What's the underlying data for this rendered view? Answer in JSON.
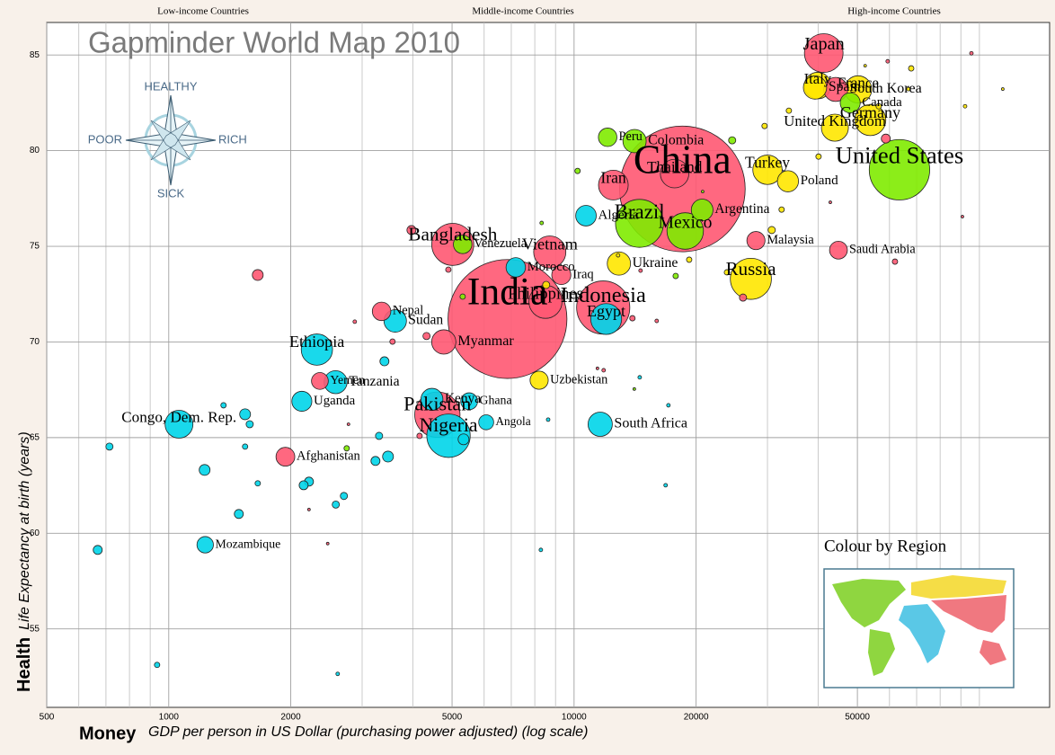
{
  "chart_data": {
    "type": "bubble",
    "title": "Gapminder World Map 2010",
    "xlabel_bold": "Money",
    "xlabel": "GDP per person in US Dollar (purchasing power adjusted) (log scale)",
    "ylabel_bold": "Health",
    "ylabel": "Life Expectancy at birth (years)",
    "income_labels": [
      "Low-income Countries",
      "Middle-income Countries",
      "High-income Countries"
    ],
    "compass": {
      "up": "HEALTHY",
      "down": "SICK",
      "left": "POOR",
      "right": "RICH"
    },
    "legend_title": "Colour by Region",
    "xscale": "log",
    "xlim": [
      500,
      149000
    ],
    "ylim": [
      50.9,
      86.7
    ],
    "xticks": [
      500,
      1000,
      2000,
      5000,
      10000,
      20000,
      50000
    ],
    "xminor": [
      600,
      700,
      800,
      900,
      3000,
      4000,
      6000,
      7000,
      8000,
      9000,
      30000,
      40000,
      60000,
      70000,
      80000,
      90000,
      100000
    ],
    "yticks": [
      55,
      60,
      65,
      70,
      75,
      80,
      85
    ],
    "grid": true,
    "points": [
      {
        "label": "China",
        "x": 18500,
        "y": 78.0,
        "size": 1340,
        "color": "#ff5872"
      },
      {
        "label": "India",
        "x": 6850,
        "y": 71.2,
        "size": 1200,
        "color": "#ff5872"
      },
      {
        "label": "United States",
        "x": 63500,
        "y": 79.0,
        "size": 310,
        "color": "#7feb00"
      },
      {
        "label": "Indonesia",
        "x": 11800,
        "y": 71.8,
        "size": 240,
        "color": "#ff5872"
      },
      {
        "label": "Brazil",
        "x": 14500,
        "y": 76.2,
        "size": 195,
        "color": "#7feb00"
      },
      {
        "label": "Pakistan",
        "x": 4600,
        "y": 66.2,
        "size": 174,
        "color": "#ff5872"
      },
      {
        "label": "Nigeria",
        "x": 4900,
        "y": 65.1,
        "size": 160,
        "color": "#00d5e9"
      },
      {
        "label": "Bangladesh",
        "x": 5020,
        "y": 75.1,
        "size": 150,
        "color": "#ff5872"
      },
      {
        "label": "Russia",
        "x": 27300,
        "y": 73.3,
        "size": 143,
        "color": "#ffe700"
      },
      {
        "label": "Japan",
        "x": 41300,
        "y": 85.1,
        "size": 127,
        "color": "#ff5872"
      },
      {
        "label": "Mexico",
        "x": 18800,
        "y": 75.8,
        "size": 113,
        "color": "#7feb00"
      },
      {
        "label": "Philippines",
        "x": 8500,
        "y": 72.1,
        "size": 93,
        "color": "#ff5872"
      },
      {
        "label": "Vietnam",
        "x": 8710,
        "y": 74.7,
        "size": 88,
        "color": "#ff5872"
      },
      {
        "label": "Ethiopia",
        "x": 2320,
        "y": 69.6,
        "size": 83,
        "color": "#00d5e9"
      },
      {
        "label": "Germany",
        "x": 53800,
        "y": 81.6,
        "size": 82,
        "color": "#ffe700"
      },
      {
        "label": "Egypt",
        "x": 12000,
        "y": 71.2,
        "size": 81,
        "color": "#00d5e9"
      },
      {
        "label": "Iran",
        "x": 12500,
        "y": 78.2,
        "size": 75,
        "color": "#ff5872"
      },
      {
        "label": "Turkey",
        "x": 30000,
        "y": 79.0,
        "size": 73,
        "color": "#ffe700"
      },
      {
        "label": "Thailand",
        "x": 17700,
        "y": 78.8,
        "size": 69,
        "color": "#ff5872"
      },
      {
        "label": "Congo, Dem. Rep.",
        "x": 1060,
        "y": 65.7,
        "size": 66,
        "color": "#00d5e9"
      },
      {
        "label": "France",
        "x": 50200,
        "y": 83.2,
        "size": 63,
        "color": "#ffe700"
      },
      {
        "label": "United Kingdom",
        "x": 44000,
        "y": 81.2,
        "size": 62,
        "color": "#ffe700"
      },
      {
        "label": "Italy",
        "x": 39900,
        "y": 83.4,
        "size": 60,
        "color": "#ffe700"
      },
      {
        "label": "Myanmar",
        "x": 4770,
        "y": 70.0,
        "size": 50,
        "color": "#ff5872"
      },
      {
        "label": "South Africa",
        "x": 11600,
        "y": 65.7,
        "size": 50,
        "color": "#00d5e9"
      },
      {
        "label": "South Korea",
        "x": 44200,
        "y": 83.2,
        "size": 49,
        "color": "#ff5872"
      },
      {
        "label": "Spain",
        "x": 39300,
        "y": 83.3,
        "size": 46,
        "color": "#ffe700"
      },
      {
        "label": "Colombia",
        "x": 14100,
        "y": 80.5,
        "size": 46,
        "color": "#7feb00"
      },
      {
        "label": "Ukraine",
        "x": 12900,
        "y": 74.1,
        "size": 46,
        "color": "#ffe700"
      },
      {
        "label": "Tanzania",
        "x": 2580,
        "y": 67.9,
        "size": 45,
        "color": "#00d5e9"
      },
      {
        "label": "Sudan",
        "x": 3620,
        "y": 71.1,
        "size": 43,
        "color": "#00d5e9"
      },
      {
        "label": "Kenya",
        "x": 4460,
        "y": 67.0,
        "size": 41,
        "color": "#00d5e9"
      },
      {
        "label": "Argentina",
        "x": 20700,
        "y": 76.9,
        "size": 40,
        "color": "#7feb00"
      },
      {
        "label": "Poland",
        "x": 33700,
        "y": 78.4,
        "size": 38,
        "color": "#ffe700"
      },
      {
        "label": "Algeria",
        "x": 10700,
        "y": 76.6,
        "size": 36,
        "color": "#00d5e9"
      },
      {
        "label": "Uganda",
        "x": 2130,
        "y": 66.9,
        "size": 34,
        "color": "#00d5e9"
      },
      {
        "label": "Canada",
        "x": 48000,
        "y": 82.5,
        "size": 34,
        "color": "#7feb00"
      },
      {
        "label": "Morocco",
        "x": 7180,
        "y": 73.9,
        "size": 32,
        "color": "#00d5e9"
      },
      {
        "label": "Iraq",
        "x": 9300,
        "y": 73.5,
        "size": 31,
        "color": "#ff5872"
      },
      {
        "label": "Afghanistan",
        "x": 1940,
        "y": 64.0,
        "size": 30,
        "color": "#ff5872"
      },
      {
        "label": "Peru",
        "x": 12100,
        "y": 80.7,
        "size": 29,
        "color": "#7feb00"
      },
      {
        "label": "Venezuela",
        "x": 5310,
        "y": 75.1,
        "size": 29,
        "color": "#7feb00"
      },
      {
        "label": "Nepal",
        "x": 3350,
        "y": 71.6,
        "size": 29,
        "color": "#ff5872"
      },
      {
        "label": "Malaysia",
        "x": 28100,
        "y": 75.3,
        "size": 28,
        "color": "#ff5872"
      },
      {
        "label": "Uzbekistan",
        "x": 8200,
        "y": 68.0,
        "size": 28,
        "color": "#ffe700"
      },
      {
        "label": "Saudi Arabia",
        "x": 44900,
        "y": 74.8,
        "size": 27,
        "color": "#ff5872"
      },
      {
        "label": "Yemen",
        "x": 2360,
        "y": 67.96,
        "size": 24,
        "color": "#ff5872"
      },
      {
        "label": "Ghana",
        "x": 5510,
        "y": 66.9,
        "size": 24,
        "color": "#00d5e9"
      },
      {
        "label": "Mozambique",
        "x": 1230,
        "y": 59.4,
        "size": 23,
        "color": "#00d5e9"
      },
      {
        "label": "Angola",
        "x": 6070,
        "y": 65.8,
        "size": 19,
        "color": "#00d5e9"
      },
      {
        "label": null,
        "x": 714,
        "y": 64.53,
        "size": 4.4,
        "color": "#00d5e9"
      },
      {
        "label": null,
        "x": 668,
        "y": 59.13,
        "size": 6.9,
        "color": "#00d5e9"
      },
      {
        "label": null,
        "x": 936,
        "y": 53.12,
        "size": 2.5,
        "color": "#00d5e9"
      },
      {
        "label": null,
        "x": 1226,
        "y": 63.31,
        "size": 10,
        "color": "#00d5e9"
      },
      {
        "label": null,
        "x": 1365,
        "y": 66.69,
        "size": 2.5,
        "color": "#00d5e9"
      },
      {
        "label": null,
        "x": 1543,
        "y": 66.22,
        "size": 10,
        "color": "#00d5e9"
      },
      {
        "label": null,
        "x": 1584,
        "y": 65.7,
        "size": 4.4,
        "color": "#00d5e9"
      },
      {
        "label": null,
        "x": 1543,
        "y": 64.53,
        "size": 2.5,
        "color": "#00d5e9"
      },
      {
        "label": null,
        "x": 1658,
        "y": 62.61,
        "size": 2.5,
        "color": "#00d5e9"
      },
      {
        "label": null,
        "x": 1489,
        "y": 61.01,
        "size": 6.9,
        "color": "#00d5e9"
      },
      {
        "label": null,
        "x": 2611,
        "y": 52.65,
        "size": 1.1,
        "color": "#00d5e9"
      },
      {
        "label": null,
        "x": 2218,
        "y": 62.7,
        "size": 6.9,
        "color": "#00d5e9"
      },
      {
        "label": null,
        "x": 2152,
        "y": 62.51,
        "size": 6.9,
        "color": "#00d5e9"
      },
      {
        "label": null,
        "x": 2583,
        "y": 61.5,
        "size": 4.4,
        "color": "#00d5e9"
      },
      {
        "label": null,
        "x": 2705,
        "y": 61.95,
        "size": 4.4,
        "color": "#00d5e9"
      },
      {
        "label": null,
        "x": 3236,
        "y": 63.78,
        "size": 6.9,
        "color": "#00d5e9"
      },
      {
        "label": null,
        "x": 3475,
        "y": 64.01,
        "size": 10,
        "color": "#00d5e9"
      },
      {
        "label": null,
        "x": 3405,
        "y": 68.99,
        "size": 6.9,
        "color": "#00d5e9"
      },
      {
        "label": null,
        "x": 3303,
        "y": 65.09,
        "size": 4.4,
        "color": "#00d5e9"
      },
      {
        "label": null,
        "x": 5337,
        "y": 64.91,
        "size": 10,
        "color": "#00d5e9"
      },
      {
        "label": null,
        "x": 8630,
        "y": 65.94,
        "size": 1.1,
        "color": "#00d5e9"
      },
      {
        "label": null,
        "x": 14520,
        "y": 68.15,
        "size": 1.1,
        "color": "#00d5e9"
      },
      {
        "label": null,
        "x": 17090,
        "y": 66.69,
        "size": 1.1,
        "color": "#00d5e9"
      },
      {
        "label": null,
        "x": 16820,
        "y": 62.51,
        "size": 1.1,
        "color": "#00d5e9"
      },
      {
        "label": null,
        "x": 8280,
        "y": 59.13,
        "size": 1.1,
        "color": "#00d5e9"
      },
      {
        "label": null,
        "x": 1658,
        "y": 73.5,
        "size": 10,
        "color": "#ff5872"
      },
      {
        "label": null,
        "x": 3970,
        "y": 75.85,
        "size": 6.9,
        "color": "#ff5872"
      },
      {
        "label": null,
        "x": 3565,
        "y": 70.02,
        "size": 2.5,
        "color": "#ff5872"
      },
      {
        "label": null,
        "x": 2877,
        "y": 71.06,
        "size": 1.1,
        "color": "#ff5872"
      },
      {
        "label": null,
        "x": 4325,
        "y": 70.31,
        "size": 4.4,
        "color": "#ff5872"
      },
      {
        "label": null,
        "x": 4896,
        "y": 73.78,
        "size": 2.5,
        "color": "#ff5872"
      },
      {
        "label": null,
        "x": 4157,
        "y": 65.09,
        "size": 2.5,
        "color": "#ff5872"
      },
      {
        "label": null,
        "x": 2776,
        "y": 65.7,
        "size": 0.5,
        "color": "#ff5872"
      },
      {
        "label": null,
        "x": 2467,
        "y": 59.46,
        "size": 0.5,
        "color": "#ff5872"
      },
      {
        "label": null,
        "x": 2218,
        "y": 61.24,
        "size": 0.3,
        "color": "#ff5872"
      },
      {
        "label": null,
        "x": 11420,
        "y": 68.62,
        "size": 0.5,
        "color": "#ff5872"
      },
      {
        "label": null,
        "x": 11830,
        "y": 68.52,
        "size": 1.1,
        "color": "#ff5872"
      },
      {
        "label": null,
        "x": 13930,
        "y": 71.24,
        "size": 2.5,
        "color": "#ff5872"
      },
      {
        "label": null,
        "x": 15990,
        "y": 71.1,
        "size": 1.1,
        "color": "#ff5872"
      },
      {
        "label": null,
        "x": 14590,
        "y": 73.73,
        "size": 1.1,
        "color": "#ff5872"
      },
      {
        "label": null,
        "x": 26110,
        "y": 72.32,
        "size": 4.4,
        "color": "#ff5872"
      },
      {
        "label": null,
        "x": 90790,
        "y": 76.55,
        "size": 0.5,
        "color": "#ff5872"
      },
      {
        "label": null,
        "x": 61900,
        "y": 74.2,
        "size": 2.5,
        "color": "#ff5872"
      },
      {
        "label": null,
        "x": 58760,
        "y": 80.63,
        "size": 6.9,
        "color": "#ff5872"
      },
      {
        "label": null,
        "x": 59390,
        "y": 84.67,
        "size": 1.1,
        "color": "#ff5872"
      },
      {
        "label": null,
        "x": 95560,
        "y": 85.09,
        "size": 1.1,
        "color": "#ff5872"
      },
      {
        "label": null,
        "x": 42870,
        "y": 77.3,
        "size": 0.5,
        "color": "#ff5872"
      },
      {
        "label": null,
        "x": 2748,
        "y": 64.44,
        "size": 2.5,
        "color": "#7feb00"
      },
      {
        "label": null,
        "x": 5311,
        "y": 72.37,
        "size": 2.5,
        "color": "#7feb00"
      },
      {
        "label": null,
        "x": 8318,
        "y": 76.22,
        "size": 1.1,
        "color": "#7feb00"
      },
      {
        "label": null,
        "x": 10200,
        "y": 78.94,
        "size": 2.5,
        "color": "#7feb00"
      },
      {
        "label": null,
        "x": 13930,
        "y": 76.55,
        "size": 1.1,
        "color": "#7feb00"
      },
      {
        "label": null,
        "x": 20760,
        "y": 77.86,
        "size": 0.5,
        "color": "#7feb00"
      },
      {
        "label": null,
        "x": 17810,
        "y": 73.45,
        "size": 2.5,
        "color": "#7feb00"
      },
      {
        "label": null,
        "x": 24550,
        "y": 80.54,
        "size": 4.4,
        "color": "#7feb00"
      },
      {
        "label": null,
        "x": 14080,
        "y": 67.54,
        "size": 0.3,
        "color": "#7feb00"
      },
      {
        "label": null,
        "x": 8534,
        "y": 72.98,
        "size": 4.4,
        "color": "#ffe700"
      },
      {
        "label": null,
        "x": 12840,
        "y": 74.53,
        "size": 1.1,
        "color": "#ffe700"
      },
      {
        "label": null,
        "x": 19230,
        "y": 74.3,
        "size": 2.5,
        "color": "#ffe700"
      },
      {
        "label": null,
        "x": 23830,
        "y": 73.64,
        "size": 2.5,
        "color": "#ffe700"
      },
      {
        "label": null,
        "x": 30740,
        "y": 75.85,
        "size": 4.4,
        "color": "#ffe700"
      },
      {
        "label": null,
        "x": 32510,
        "y": 76.92,
        "size": 2.5,
        "color": "#ffe700"
      },
      {
        "label": null,
        "x": 40100,
        "y": 79.69,
        "size": 2.5,
        "color": "#ffe700"
      },
      {
        "label": null,
        "x": 29510,
        "y": 81.29,
        "size": 2.5,
        "color": "#ffe700"
      },
      {
        "label": null,
        "x": 33880,
        "y": 82.09,
        "size": 2.5,
        "color": "#ffe700"
      },
      {
        "label": null,
        "x": 67880,
        "y": 84.3,
        "size": 2.5,
        "color": "#ffe700"
      },
      {
        "label": null,
        "x": 66830,
        "y": 83.22,
        "size": 1.1,
        "color": "#ffe700"
      },
      {
        "label": null,
        "x": 92180,
        "y": 82.32,
        "size": 1.1,
        "color": "#ffe700"
      },
      {
        "label": null,
        "x": 114200,
        "y": 83.22,
        "size": 0.1,
        "color": "#ffe700"
      },
      {
        "label": null,
        "x": 52250,
        "y": 84.44,
        "size": 0.1,
        "color": "#ffe700"
      },
      {
        "label": null,
        "x": 56450,
        "y": 82.32,
        "size": 2.5,
        "color": "#ffe700"
      },
      {
        "label": null,
        "x": 50730,
        "y": 81.71,
        "size": 2.5,
        "color": "#ffe700"
      }
    ]
  }
}
